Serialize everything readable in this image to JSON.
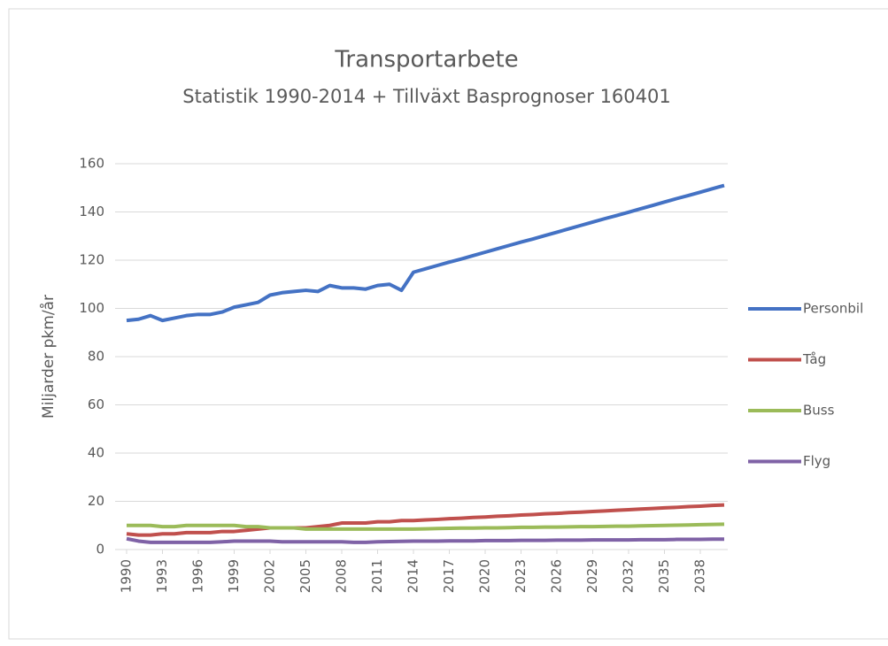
{
  "chart_data": {
    "type": "line",
    "title": "Transportarbete",
    "subtitle": "Statistik 1990-2014 + Tillväxt Basprognoser 160401",
    "y_label": "Miljarder pkm/år",
    "x": [
      1990,
      1991,
      1992,
      1993,
      1994,
      1995,
      1996,
      1997,
      1998,
      1999,
      2000,
      2001,
      2002,
      2003,
      2004,
      2005,
      2006,
      2007,
      2008,
      2009,
      2010,
      2011,
      2012,
      2013,
      2014,
      2015,
      2016,
      2017,
      2018,
      2019,
      2020,
      2021,
      2022,
      2023,
      2024,
      2025,
      2026,
      2027,
      2028,
      2029,
      2030,
      2031,
      2032,
      2033,
      2034,
      2035,
      2036,
      2037,
      2038,
      2039,
      2040
    ],
    "series": [
      {
        "name": "Personbil",
        "color": "#4472c4",
        "values": [
          95,
          95.5,
          97,
          95,
          96,
          97,
          97.5,
          97.5,
          98.5,
          100.5,
          101.5,
          102.5,
          105.5,
          106.5,
          107,
          107.5,
          107,
          109.5,
          108.5,
          108.5,
          108,
          109.5,
          110,
          107.5,
          115,
          116.4,
          117.8,
          119.2,
          120.5,
          121.9,
          123.3,
          124.7,
          126.1,
          127.5,
          128.8,
          130.2,
          131.6,
          133.0,
          134.4,
          135.8,
          137.2,
          138.5,
          139.9,
          141.3,
          142.7,
          144.1,
          145.5,
          146.8,
          148.2,
          149.6,
          151.0
        ]
      },
      {
        "name": "Tåg",
        "color": "#c0504d",
        "values": [
          6.5,
          6,
          6,
          6.5,
          6.5,
          7,
          7,
          7,
          7.5,
          7.5,
          8,
          8.5,
          9,
          9,
          9,
          9,
          9.5,
          10,
          11,
          11,
          11,
          11.5,
          11.5,
          12,
          12,
          12.3,
          12.5,
          12.8,
          13,
          13.3,
          13.5,
          13.8,
          14,
          14.3,
          14.5,
          14.8,
          15,
          15.3,
          15.5,
          15.8,
          16,
          16.3,
          16.5,
          16.8,
          17,
          17.3,
          17.5,
          17.8,
          18,
          18.3,
          18.5
        ]
      },
      {
        "name": "Buss",
        "color": "#9bbb59",
        "values": [
          10,
          10,
          10,
          9.5,
          9.5,
          10,
          10,
          10,
          10,
          10,
          9.5,
          9.5,
          9,
          9,
          9,
          8.5,
          8.5,
          8.5,
          8.5,
          8.5,
          8.5,
          8.5,
          8.5,
          8.5,
          8.5,
          8.6,
          8.7,
          8.8,
          8.9,
          8.9,
          9,
          9,
          9.1,
          9.2,
          9.2,
          9.3,
          9.3,
          9.4,
          9.5,
          9.5,
          9.6,
          9.7,
          9.7,
          9.8,
          9.9,
          10,
          10.1,
          10.2,
          10.3,
          10.4,
          10.5
        ]
      },
      {
        "name": "Flyg",
        "color": "#7f62a6",
        "values": [
          4.5,
          3.5,
          3,
          3,
          3,
          3,
          3,
          3,
          3.2,
          3.5,
          3.5,
          3.5,
          3.5,
          3.2,
          3.2,
          3.2,
          3.2,
          3.2,
          3.2,
          3,
          3,
          3.2,
          3.3,
          3.4,
          3.5,
          3.5,
          3.5,
          3.6,
          3.6,
          3.6,
          3.7,
          3.7,
          3.7,
          3.8,
          3.8,
          3.8,
          3.9,
          3.9,
          3.9,
          4,
          4,
          4,
          4,
          4.1,
          4.1,
          4.1,
          4.2,
          4.2,
          4.2,
          4.3,
          4.3
        ]
      }
    ],
    "xlim": [
      1990,
      2040
    ],
    "xticks": [
      1990,
      1993,
      1996,
      1999,
      2002,
      2005,
      2008,
      2011,
      2014,
      2017,
      2020,
      2023,
      2026,
      2029,
      2032,
      2035,
      2038
    ],
    "ylim": [
      0,
      160
    ],
    "yticks": [
      0,
      20,
      40,
      60,
      80,
      100,
      120,
      140,
      160
    ],
    "grid": true,
    "legend": "right"
  }
}
